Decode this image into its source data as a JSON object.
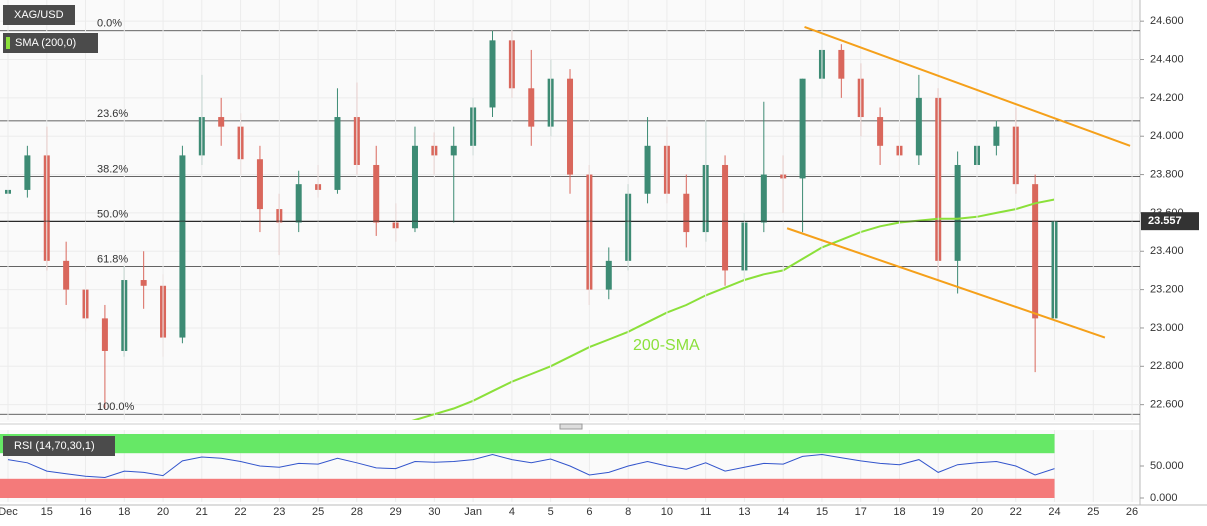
{
  "chart_data": {
    "type": "candlestick",
    "title": "XAG/USD",
    "categories": [
      "Dec",
      null,
      "15",
      null,
      "16",
      null,
      "18",
      null,
      "20",
      null,
      "21",
      null,
      "22",
      null,
      "23",
      null,
      "25",
      null,
      "28",
      null,
      "29",
      null,
      "30",
      null,
      "Jan",
      null,
      "4",
      null,
      "5",
      null,
      "6",
      null,
      "8",
      null,
      "10",
      null,
      "11",
      null,
      "13",
      null,
      "14",
      null,
      "15",
      null,
      "17",
      null,
      "18",
      null,
      "19",
      null,
      "20",
      null,
      "22",
      null,
      "24",
      null,
      "25",
      null,
      "26",
      null
    ],
    "ohlc": [
      [
        23.7,
        23.78,
        23.65,
        23.72
      ],
      [
        23.72,
        23.95,
        23.68,
        23.9
      ],
      [
        23.9,
        24.05,
        23.3,
        23.35
      ],
      [
        23.35,
        23.45,
        23.12,
        23.2
      ],
      [
        23.2,
        23.3,
        22.98,
        23.05
      ],
      [
        23.05,
        23.12,
        22.58,
        22.88
      ],
      [
        22.88,
        23.32,
        22.85,
        23.25
      ],
      [
        23.25,
        23.4,
        23.1,
        23.22
      ],
      [
        23.22,
        23.28,
        22.85,
        22.95
      ],
      [
        22.95,
        23.95,
        22.92,
        23.9
      ],
      [
        23.9,
        24.32,
        23.85,
        24.1
      ],
      [
        24.1,
        24.2,
        23.95,
        24.05
      ],
      [
        24.05,
        24.12,
        23.8,
        23.88
      ],
      [
        23.88,
        23.95,
        23.5,
        23.62
      ],
      [
        23.62,
        23.7,
        23.38,
        23.55
      ],
      [
        23.55,
        23.82,
        23.5,
        23.75
      ],
      [
        23.75,
        23.85,
        23.68,
        23.72
      ],
      [
        23.72,
        24.25,
        23.7,
        24.1
      ],
      [
        24.1,
        24.28,
        23.8,
        23.85
      ],
      [
        23.85,
        23.95,
        23.48,
        23.55
      ],
      [
        23.55,
        23.65,
        23.45,
        23.52
      ],
      [
        23.52,
        24.05,
        23.5,
        23.95
      ],
      [
        23.95,
        24.02,
        23.8,
        23.9
      ],
      [
        23.9,
        24.05,
        23.55,
        23.95
      ],
      [
        23.95,
        24.2,
        23.9,
        24.15
      ],
      [
        24.15,
        24.55,
        24.1,
        24.5
      ],
      [
        24.5,
        24.55,
        24.2,
        24.25
      ],
      [
        24.25,
        24.45,
        23.95,
        24.05
      ],
      [
        24.05,
        24.4,
        24.0,
        24.3
      ],
      [
        24.3,
        24.35,
        23.7,
        23.8
      ],
      [
        23.8,
        23.85,
        23.12,
        23.2
      ],
      [
        23.2,
        23.42,
        23.15,
        23.35
      ],
      [
        23.35,
        23.75,
        23.3,
        23.7
      ],
      [
        23.7,
        24.1,
        23.65,
        23.95
      ],
      [
        23.95,
        24.05,
        23.65,
        23.7
      ],
      [
        23.7,
        23.8,
        23.42,
        23.5
      ],
      [
        23.5,
        24.08,
        23.45,
        23.85
      ],
      [
        23.85,
        23.9,
        23.22,
        23.3
      ],
      [
        23.3,
        23.6,
        23.25,
        23.55
      ],
      [
        23.55,
        24.18,
        23.5,
        23.8
      ],
      [
        23.8,
        23.9,
        23.6,
        23.78
      ],
      [
        23.78,
        24.3,
        23.5,
        24.3
      ],
      [
        24.3,
        24.52,
        24.2,
        24.45
      ],
      [
        24.45,
        24.48,
        24.2,
        24.3
      ],
      [
        24.3,
        24.38,
        24.0,
        24.1
      ],
      [
        24.1,
        24.15,
        23.85,
        23.95
      ],
      [
        23.95,
        24.05,
        23.82,
        23.9
      ],
      [
        23.9,
        24.32,
        23.85,
        24.2
      ],
      [
        24.2,
        24.25,
        23.25,
        23.35
      ],
      [
        23.35,
        23.92,
        23.18,
        23.85
      ],
      [
        23.85,
        24.05,
        23.8,
        23.95
      ],
      [
        23.95,
        24.08,
        23.9,
        24.05
      ],
      [
        24.05,
        24.15,
        23.7,
        23.75
      ],
      [
        23.75,
        23.8,
        22.77,
        23.05
      ],
      [
        23.05,
        23.56,
        23.0,
        23.557
      ],
      null,
      null,
      null,
      null,
      null
    ],
    "up_color": "#3d8b74",
    "down_color": "#d9675c",
    "series": [
      {
        "name": "SMA (200,0)",
        "color": "#8be03a",
        "values": [
          null,
          null,
          null,
          null,
          null,
          null,
          null,
          null,
          null,
          null,
          null,
          null,
          null,
          null,
          null,
          null,
          null,
          null,
          null,
          null,
          22.49,
          22.52,
          22.55,
          22.58,
          22.62,
          22.67,
          22.72,
          22.76,
          22.8,
          22.85,
          22.9,
          22.94,
          22.98,
          23.03,
          23.08,
          23.12,
          23.17,
          23.21,
          23.25,
          23.28,
          23.3,
          23.36,
          23.42,
          23.46,
          23.5,
          23.53,
          23.55,
          23.56,
          23.57,
          23.57,
          23.58,
          23.6,
          23.62,
          23.65,
          23.67,
          null,
          null,
          null,
          null,
          null
        ]
      }
    ],
    "sma_annotation": "200-SMA",
    "ylim": [
      22.52,
      24.7
    ],
    "yticks": [
      {
        "value": 22.6,
        "label": "22.600"
      },
      {
        "value": 22.8,
        "label": "22.800"
      },
      {
        "value": 23.0,
        "label": "23.000"
      },
      {
        "value": 23.2,
        "label": "23.200"
      },
      {
        "value": 23.4,
        "label": "23.400"
      },
      {
        "value": 23.6,
        "label": "23.600"
      },
      {
        "value": 23.8,
        "label": "23.800"
      },
      {
        "value": 24.0,
        "label": "24.000"
      },
      {
        "value": 24.2,
        "label": "24.200"
      },
      {
        "value": 24.4,
        "label": "24.400"
      },
      {
        "value": 24.6,
        "label": "24.600"
      }
    ],
    "grid": true,
    "fib_levels": [
      {
        "label": "0.0%",
        "value": 24.55
      },
      {
        "label": "23.6%",
        "value": 24.08
      },
      {
        "label": "38.2%",
        "value": 23.79
      },
      {
        "label": "50.0%",
        "value": 23.555
      },
      {
        "label": "61.8%",
        "value": 23.32
      },
      {
        "label": "100.0%",
        "value": 22.55
      }
    ],
    "trendlines": [
      {
        "color": "#f5a01a",
        "x": [
          41.1,
          57.9
        ],
        "y": [
          24.57,
          23.95
        ]
      },
      {
        "color": "#f5a01a",
        "x": [
          40.2,
          56.6
        ],
        "y": [
          23.52,
          22.95
        ]
      }
    ],
    "rsi": {
      "name": "RSI (14,70,30,1)",
      "color": "#3355cc",
      "values": [
        60,
        55,
        42,
        38,
        34,
        32,
        42,
        40,
        35,
        58,
        64,
        62,
        57,
        50,
        48,
        54,
        53,
        62,
        55,
        47,
        46,
        57,
        56,
        57,
        60,
        68,
        60,
        55,
        61,
        50,
        36,
        40,
        50,
        57,
        50,
        45,
        55,
        42,
        48,
        54,
        53,
        65,
        68,
        63,
        58,
        54,
        52,
        60,
        40,
        52,
        55,
        57,
        50,
        36,
        46,
        null,
        null,
        null,
        null,
        null
      ],
      "ylim": [
        0,
        100
      ],
      "overbought": 70,
      "oversold": 30,
      "yticks": [
        {
          "value": 50,
          "label": "50.000"
        },
        {
          "value": 0,
          "label": "0.000"
        }
      ]
    }
  }
}
